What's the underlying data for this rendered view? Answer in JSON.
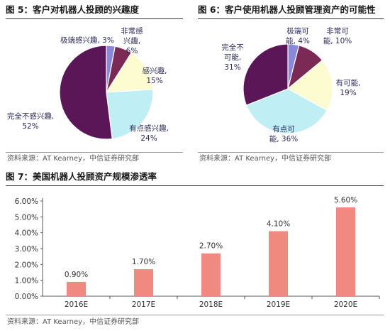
{
  "charts": [
    {
      "title": "图 5：客户对机器人投顾的兴趣度",
      "source": "资料来源：AT Kearney，中信证券研究部"
    },
    {
      "title": "图 6：客户使用机器人投顾管理资产的可能性",
      "source": "资料来源：AT Kearney，中信证券研究部"
    },
    {
      "title": "图 7：美国机器人投顾资产规模渗透率",
      "source": "资料来源：AT Kearney，中信证券研究部"
    }
  ],
  "chart_data": [
    {
      "type": "pie",
      "title": "图 5：客户对机器人投顾的兴趣度",
      "slices": [
        {
          "label": "极端感兴趣, 3%",
          "value": 3,
          "color": "#8a88d8"
        },
        {
          "label": "非常感兴趣, 6%",
          "value": 6,
          "color": "#7a2a55"
        },
        {
          "label": "感兴趣, 15%",
          "value": 15,
          "color": "#fdfbd0"
        },
        {
          "label": "有点感兴趣, 24%",
          "value": 24,
          "color": "#bfeef5"
        },
        {
          "label": "完全不感兴趣, 52%",
          "value": 52,
          "color": "#5b1657"
        }
      ],
      "start_angle": 0,
      "direction": "clockwise"
    },
    {
      "type": "pie",
      "title": "图 6：客户使用机器人投顾管理资产的可能性",
      "slices": [
        {
          "label": "极端可能, 4%",
          "value": 4,
          "color": "#8a88d8"
        },
        {
          "label": "非常可能, 10%",
          "value": 10,
          "color": "#7a2a55"
        },
        {
          "label": "有可能, 19%",
          "value": 19,
          "color": "#fdfbd0"
        },
        {
          "label": "有点可能, 36%",
          "value": 36,
          "color": "#bfeef5"
        },
        {
          "label": "完全不可能, 31%",
          "value": 31,
          "color": "#5b1657"
        }
      ],
      "start_angle": 0,
      "direction": "clockwise"
    },
    {
      "type": "bar",
      "title": "图 7：美国机器人投顾资产规模渗透率",
      "categories": [
        "2016E",
        "2017E",
        "2018E",
        "2019E",
        "2020E"
      ],
      "values": [
        0.9,
        1.7,
        2.7,
        4.1,
        5.6
      ],
      "value_labels": [
        "0.90%",
        "1.70%",
        "2.70%",
        "4.10%",
        "5.60%"
      ],
      "yticks": [
        "0.00%",
        "1.00%",
        "2.00%",
        "3.00%",
        "4.00%",
        "5.00%",
        "6.00%"
      ],
      "ylim": [
        0,
        6
      ],
      "bar_color": "#f08a80",
      "grid": false,
      "legend": "none"
    }
  ]
}
